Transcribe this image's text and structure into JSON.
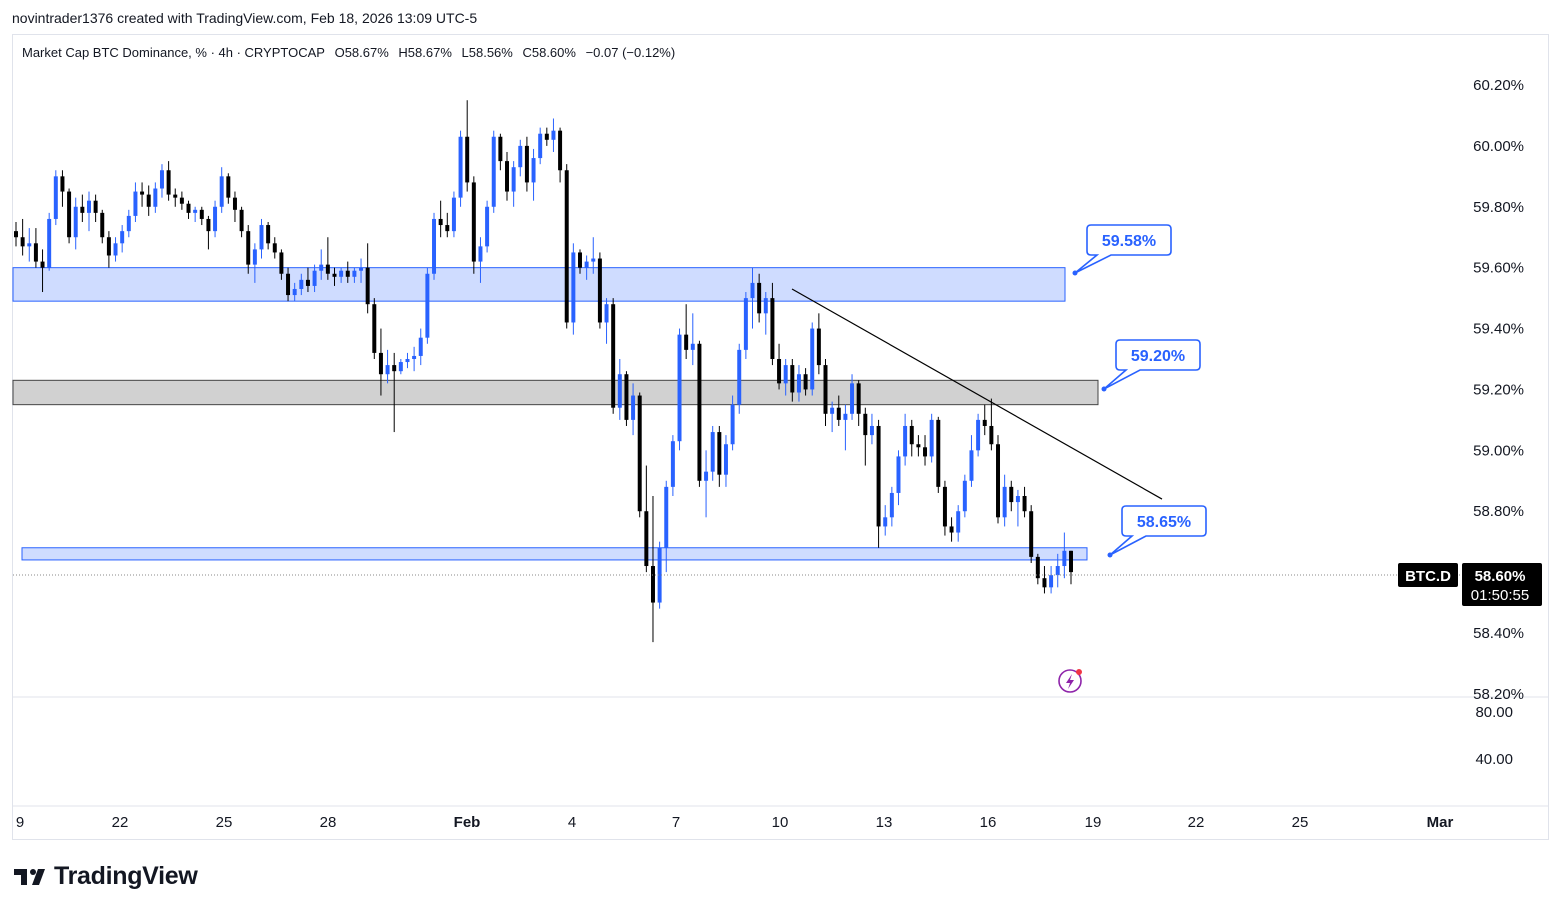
{
  "header": {
    "credit": "novintrader1376 created with TradingView.com, Feb 18, 2026 13:09 UTC-5"
  },
  "symbol_line": {
    "name": "Market Cap BTC Dominance, % · 4h · CRYPTOCAP",
    "open": "O58.67%",
    "high": "H58.67%",
    "low": "L58.56%",
    "close": "C58.60%",
    "change": "−0.07 (−0.12%)"
  },
  "price_axis": {
    "ticks": [
      "60.20%",
      "60.00%",
      "59.80%",
      "59.60%",
      "59.40%",
      "59.20%",
      "59.00%",
      "58.80%",
      "58.40%",
      "58.20%"
    ],
    "current_symbol": "BTC.D",
    "current_price": "58.60%",
    "countdown": "01:50:55"
  },
  "indicator_axis": {
    "ticks": [
      "80.00",
      "40.00"
    ]
  },
  "time_axis": {
    "ticks": [
      "9",
      "22",
      "25",
      "28",
      "Feb",
      "4",
      "7",
      "10",
      "13",
      "16",
      "19",
      "22",
      "25",
      "Mar"
    ]
  },
  "annotations": {
    "zone_upper_label": "59.58%",
    "zone_middle_label": "59.20%",
    "zone_lower_label": "58.65%"
  },
  "colors": {
    "up_candle": "#2962ff",
    "down_candle": "#000000",
    "zone_blue_fill": "#cfdcff",
    "zone_blue_stroke": "#2962ff",
    "zone_gray_fill": "#d1d1d1",
    "trendline": "#000000"
  },
  "footer": {
    "logo_text": "TradingView"
  },
  "chart_data": {
    "type": "candlestick",
    "title": "Market Cap BTC Dominance, % · 4h · CRYPTOCAP",
    "ylabel": "%",
    "ylim": [
      58.2,
      60.25
    ],
    "x_ticks": [
      "9",
      "22",
      "25",
      "28",
      "Feb",
      "4",
      "7",
      "10",
      "13",
      "16",
      "19",
      "22",
      "25",
      "Mar"
    ],
    "zones": [
      {
        "label": "59.58%",
        "low": 59.49,
        "high": 59.6,
        "color": "blue"
      },
      {
        "label": "59.20%",
        "low": 59.15,
        "high": 59.23,
        "color": "gray"
      },
      {
        "label": "58.65%",
        "low": 58.64,
        "high": 58.68,
        "color": "blue"
      }
    ],
    "trendline": {
      "from": [
        59.53
      ],
      "to": [
        58.84
      ]
    },
    "candles": [
      [
        59.72,
        59.75,
        59.67,
        59.7
      ],
      [
        59.7,
        59.76,
        59.64,
        59.67
      ],
      [
        59.67,
        59.73,
        59.62,
        59.68
      ],
      [
        59.68,
        59.73,
        59.6,
        59.62
      ],
      [
        59.62,
        59.66,
        59.52,
        59.6
      ],
      [
        59.6,
        59.78,
        59.59,
        59.76
      ],
      [
        59.76,
        59.92,
        59.74,
        59.9
      ],
      [
        59.9,
        59.92,
        59.8,
        59.85
      ],
      [
        59.85,
        59.86,
        59.68,
        59.7
      ],
      [
        59.7,
        59.83,
        59.66,
        59.8
      ],
      [
        59.8,
        59.84,
        59.75,
        59.78
      ],
      [
        59.78,
        59.85,
        59.72,
        59.82
      ],
      [
        59.82,
        59.84,
        59.75,
        59.78
      ],
      [
        59.78,
        59.79,
        59.68,
        59.7
      ],
      [
        59.7,
        59.72,
        59.6,
        59.64
      ],
      [
        59.64,
        59.7,
        59.62,
        59.68
      ],
      [
        59.68,
        59.74,
        59.65,
        59.72
      ],
      [
        59.72,
        59.79,
        59.7,
        59.77
      ],
      [
        59.77,
        59.88,
        59.75,
        59.85
      ],
      [
        59.85,
        59.88,
        59.8,
        59.84
      ],
      [
        59.84,
        59.87,
        59.77,
        59.8
      ],
      [
        59.8,
        59.88,
        59.78,
        59.86
      ],
      [
        59.86,
        59.94,
        59.83,
        59.92
      ],
      [
        59.92,
        59.95,
        59.82,
        59.84
      ],
      [
        59.84,
        59.86,
        59.8,
        59.83
      ],
      [
        59.83,
        59.85,
        59.79,
        59.81
      ],
      [
        59.81,
        59.82,
        59.76,
        59.78
      ],
      [
        59.78,
        59.8,
        59.75,
        59.79
      ],
      [
        59.79,
        59.8,
        59.74,
        59.76
      ],
      [
        59.76,
        59.77,
        59.66,
        59.72
      ],
      [
        59.72,
        59.82,
        59.7,
        59.8
      ],
      [
        59.8,
        59.93,
        59.78,
        59.9
      ],
      [
        59.9,
        59.91,
        59.81,
        59.83
      ],
      [
        59.83,
        59.85,
        59.75,
        59.79
      ],
      [
        59.79,
        59.8,
        59.7,
        59.72
      ],
      [
        59.72,
        59.74,
        59.58,
        59.61
      ],
      [
        59.61,
        59.68,
        59.55,
        59.66
      ],
      [
        59.66,
        59.76,
        59.63,
        59.74
      ],
      [
        59.74,
        59.75,
        59.66,
        59.68
      ],
      [
        59.68,
        59.7,
        59.63,
        59.65
      ],
      [
        59.65,
        59.66,
        59.56,
        59.58
      ],
      [
        59.58,
        59.6,
        59.49,
        59.51
      ],
      [
        59.51,
        59.55,
        59.49,
        59.53
      ],
      [
        59.53,
        59.58,
        59.51,
        59.56
      ],
      [
        59.56,
        59.6,
        59.52,
        59.54
      ],
      [
        59.54,
        59.61,
        59.52,
        59.59
      ],
      [
        59.59,
        59.66,
        59.56,
        59.61
      ],
      [
        59.61,
        59.7,
        59.56,
        59.58
      ],
      [
        59.58,
        59.6,
        59.54,
        59.57
      ],
      [
        59.57,
        59.6,
        59.55,
        59.59
      ],
      [
        59.59,
        59.62,
        59.55,
        59.57
      ],
      [
        59.57,
        59.6,
        59.55,
        59.59
      ],
      [
        59.59,
        59.63,
        59.55,
        59.6
      ],
      [
        59.6,
        59.68,
        59.45,
        59.48
      ],
      [
        59.48,
        59.5,
        59.3,
        59.32
      ],
      [
        59.32,
        59.4,
        59.18,
        59.25
      ],
      [
        59.25,
        59.33,
        59.22,
        59.28
      ],
      [
        59.28,
        59.32,
        59.06,
        59.26
      ],
      [
        59.26,
        59.3,
        59.25,
        59.29
      ],
      [
        59.29,
        59.32,
        59.27,
        59.3
      ],
      [
        59.3,
        59.34,
        59.26,
        59.31
      ],
      [
        59.31,
        59.4,
        59.28,
        59.37
      ],
      [
        59.37,
        59.6,
        59.35,
        59.58
      ],
      [
        59.58,
        59.78,
        59.56,
        59.76
      ],
      [
        59.76,
        59.82,
        59.7,
        59.74
      ],
      [
        59.74,
        59.78,
        59.7,
        59.72
      ],
      [
        59.72,
        59.85,
        59.7,
        59.83
      ],
      [
        59.83,
        60.05,
        59.8,
        60.03
      ],
      [
        60.03,
        60.15,
        59.85,
        59.88
      ],
      [
        59.88,
        59.9,
        59.58,
        59.62
      ],
      [
        59.62,
        59.7,
        59.55,
        59.67
      ],
      [
        59.67,
        59.82,
        59.65,
        59.8
      ],
      [
        59.8,
        60.05,
        59.78,
        60.03
      ],
      [
        60.03,
        60.04,
        59.92,
        59.95
      ],
      [
        59.95,
        59.98,
        59.82,
        59.85
      ],
      [
        59.85,
        59.95,
        59.8,
        59.93
      ],
      [
        59.93,
        60.02,
        59.9,
        60.0
      ],
      [
        60.0,
        60.03,
        59.85,
        59.88
      ],
      [
        59.88,
        59.99,
        59.82,
        59.96
      ],
      [
        59.96,
        60.06,
        59.94,
        60.04
      ],
      [
        60.04,
        60.06,
        60.0,
        60.02
      ],
      [
        60.02,
        60.09,
        59.98,
        60.05
      ],
      [
        60.05,
        60.06,
        59.88,
        59.92
      ],
      [
        59.92,
        59.94,
        59.4,
        59.42
      ],
      [
        59.42,
        59.68,
        59.38,
        59.65
      ],
      [
        59.65,
        59.66,
        59.58,
        59.6
      ],
      [
        59.6,
        59.64,
        59.56,
        59.62
      ],
      [
        59.62,
        59.7,
        59.58,
        59.63
      ],
      [
        59.63,
        59.65,
        59.4,
        59.42
      ],
      [
        59.42,
        59.5,
        59.35,
        59.48
      ],
      [
        59.48,
        59.5,
        59.12,
        59.14
      ],
      [
        59.14,
        59.3,
        59.1,
        59.25
      ],
      [
        59.25,
        59.26,
        59.08,
        59.1
      ],
      [
        59.1,
        59.22,
        59.05,
        59.18
      ],
      [
        59.18,
        59.19,
        58.78,
        58.8
      ],
      [
        58.8,
        58.95,
        58.6,
        58.62
      ],
      [
        58.62,
        58.85,
        58.37,
        58.5
      ],
      [
        58.5,
        58.7,
        58.48,
        58.68
      ],
      [
        58.68,
        58.9,
        58.6,
        58.88
      ],
      [
        58.88,
        59.05,
        58.85,
        59.03
      ],
      [
        59.03,
        59.4,
        59.0,
        59.38
      ],
      [
        59.38,
        59.48,
        59.3,
        59.33
      ],
      [
        59.33,
        59.45,
        59.28,
        59.35
      ],
      [
        59.35,
        59.36,
        58.88,
        58.9
      ],
      [
        58.9,
        59.0,
        58.78,
        58.93
      ],
      [
        58.93,
        59.08,
        58.9,
        59.06
      ],
      [
        59.06,
        59.08,
        58.88,
        58.92
      ],
      [
        58.92,
        59.05,
        58.88,
        59.02
      ],
      [
        59.02,
        59.18,
        59.0,
        59.15
      ],
      [
        59.15,
        59.35,
        59.12,
        59.33
      ],
      [
        59.33,
        59.52,
        59.3,
        59.5
      ],
      [
        59.5,
        59.6,
        59.4,
        59.55
      ],
      [
        59.55,
        59.58,
        59.42,
        59.45
      ],
      [
        59.45,
        59.52,
        59.38,
        59.5
      ],
      [
        59.5,
        59.55,
        59.28,
        59.3
      ],
      [
        59.3,
        59.35,
        59.2,
        59.22
      ],
      [
        59.22,
        59.3,
        59.18,
        59.28
      ],
      [
        59.28,
        59.3,
        59.16,
        59.19
      ],
      [
        59.19,
        59.28,
        59.16,
        59.25
      ],
      [
        59.25,
        59.27,
        59.18,
        59.2
      ],
      [
        59.2,
        59.42,
        59.18,
        59.4
      ],
      [
        59.4,
        59.45,
        59.25,
        59.28
      ],
      [
        59.28,
        59.3,
        59.08,
        59.12
      ],
      [
        59.12,
        59.16,
        59.06,
        59.14
      ],
      [
        59.14,
        59.18,
        59.08,
        59.1
      ],
      [
        59.1,
        59.15,
        59.0,
        59.12
      ],
      [
        59.12,
        59.25,
        59.1,
        59.22
      ],
      [
        59.22,
        59.23,
        59.08,
        59.12
      ],
      [
        59.12,
        59.14,
        58.95,
        59.05
      ],
      [
        59.05,
        59.12,
        59.02,
        59.08
      ],
      [
        59.08,
        59.1,
        58.68,
        58.75
      ],
      [
        58.75,
        58.82,
        58.72,
        58.78
      ],
      [
        58.78,
        58.88,
        58.75,
        58.86
      ],
      [
        58.86,
        59.0,
        58.82,
        58.98
      ],
      [
        58.98,
        59.12,
        58.95,
        59.08
      ],
      [
        59.08,
        59.1,
        58.98,
        59.02
      ],
      [
        59.02,
        59.05,
        58.98,
        59.01
      ],
      [
        59.01,
        59.05,
        58.95,
        58.98
      ],
      [
        58.98,
        59.12,
        58.96,
        59.1
      ],
      [
        59.1,
        59.11,
        58.86,
        58.88
      ],
      [
        58.88,
        58.9,
        58.72,
        58.75
      ],
      [
        58.75,
        58.78,
        58.7,
        58.73
      ],
      [
        58.73,
        58.82,
        58.7,
        58.8
      ],
      [
        58.8,
        58.92,
        58.78,
        58.9
      ],
      [
        58.9,
        59.05,
        58.88,
        59.0
      ],
      [
        59.0,
        59.12,
        58.98,
        59.1
      ],
      [
        59.1,
        59.15,
        59.05,
        59.08
      ],
      [
        59.08,
        59.17,
        59.0,
        59.02
      ],
      [
        59.02,
        59.05,
        58.76,
        58.78
      ],
      [
        58.78,
        58.92,
        58.75,
        58.88
      ],
      [
        58.88,
        58.9,
        58.8,
        58.83
      ],
      [
        58.83,
        58.87,
        58.75,
        58.85
      ],
      [
        58.85,
        58.88,
        58.78,
        58.8
      ],
      [
        58.8,
        58.82,
        58.63,
        58.65
      ],
      [
        58.65,
        58.66,
        58.56,
        58.58
      ],
      [
        58.58,
        58.62,
        58.53,
        58.55
      ],
      [
        58.55,
        58.62,
        58.53,
        58.59
      ],
      [
        58.59,
        58.66,
        58.55,
        58.62
      ],
      [
        58.62,
        58.73,
        58.58,
        58.67
      ],
      [
        58.67,
        58.67,
        58.56,
        58.6
      ]
    ]
  }
}
